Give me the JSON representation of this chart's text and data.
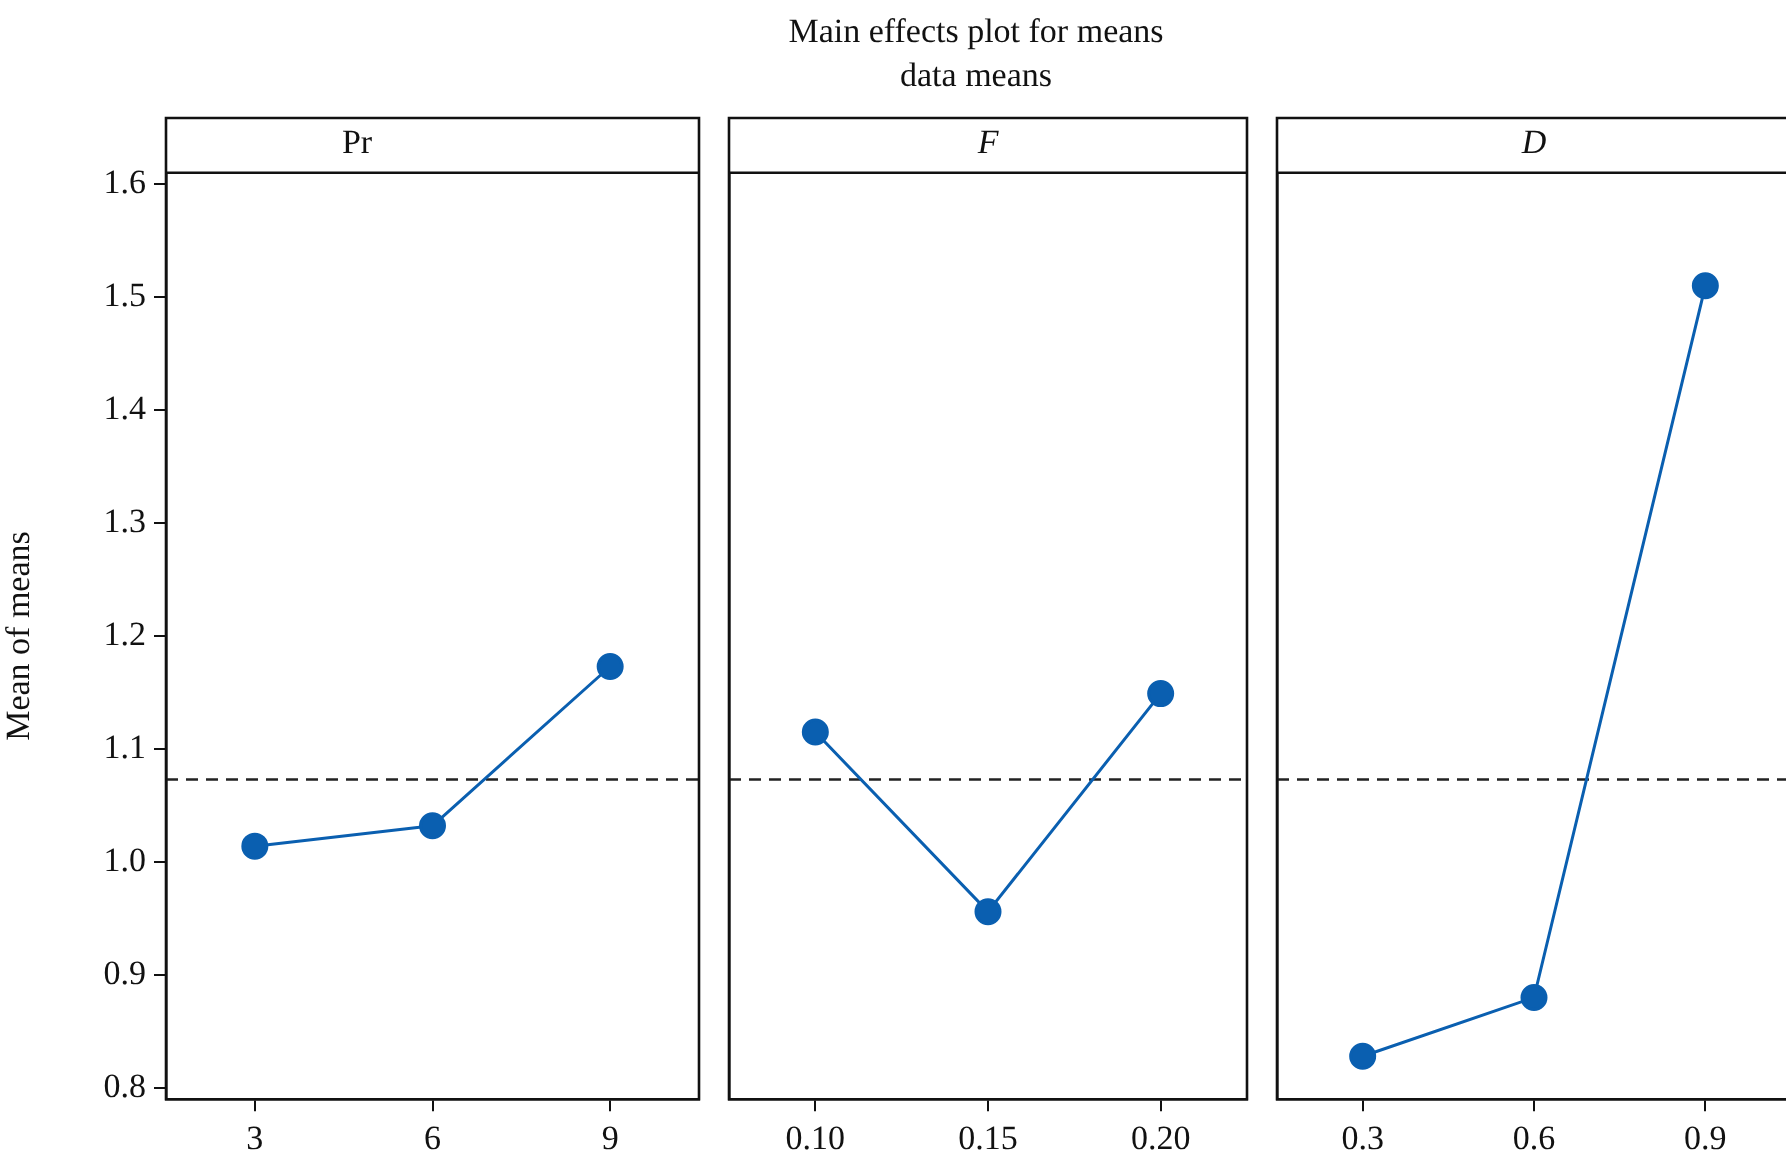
{
  "chart_data": [
    {
      "type": "line",
      "title": "Pr",
      "ylabel": "Mean of means",
      "annotations": [
        "Main effects plot for means",
        "data means"
      ],
      "categories": [
        "3",
        "6",
        "9"
      ],
      "series": [
        {
          "color": "#0a5fb0",
          "values": [
            1.014,
            1.032,
            1.173
          ]
        }
      ],
      "ylim": [
        0.79,
        1.61
      ],
      "yticks": [
        0.8,
        0.9,
        {
          "value": 1,
          "label": "1.0"
        },
        1.1,
        1.2,
        1.3,
        1.4,
        1.5,
        1.6
      ],
      "ref_lines": [
        {
          "axis": "y",
          "value": 1.073,
          "color": "#222222",
          "line_style": "dashed"
        }
      ],
      "marker": "circle",
      "line_style": "solid",
      "grid": false,
      "legend": false
    },
    {
      "type": "line",
      "title": "F",
      "categories": [
        "0.10",
        "0.15",
        "0.20"
      ],
      "series": [
        {
          "color": "#0a5fb0",
          "values": [
            1.115,
            0.956,
            1.149
          ]
        }
      ],
      "ylim": [
        0.79,
        1.61
      ],
      "tick_labels": "x",
      "ref_lines": [
        {
          "axis": "y",
          "value": 1.073,
          "color": "#222222",
          "line_style": "dashed"
        }
      ],
      "marker": "circle",
      "line_style": "solid",
      "grid": false,
      "legend": false
    },
    {
      "type": "line",
      "title": "D",
      "categories": [
        "0.3",
        "0.6",
        "0.9"
      ],
      "series": [
        {
          "color": "#0a5fb0",
          "values": [
            0.828,
            0.88,
            1.51
          ]
        }
      ],
      "ylim": [
        0.79,
        1.61
      ],
      "tick_labels": "x",
      "ref_lines": [
        {
          "axis": "y",
          "value": 1.073,
          "color": "#222222",
          "line_style": "dashed"
        }
      ],
      "marker": "circle",
      "line_style": "solid",
      "grid": false,
      "legend": false
    }
  ]
}
